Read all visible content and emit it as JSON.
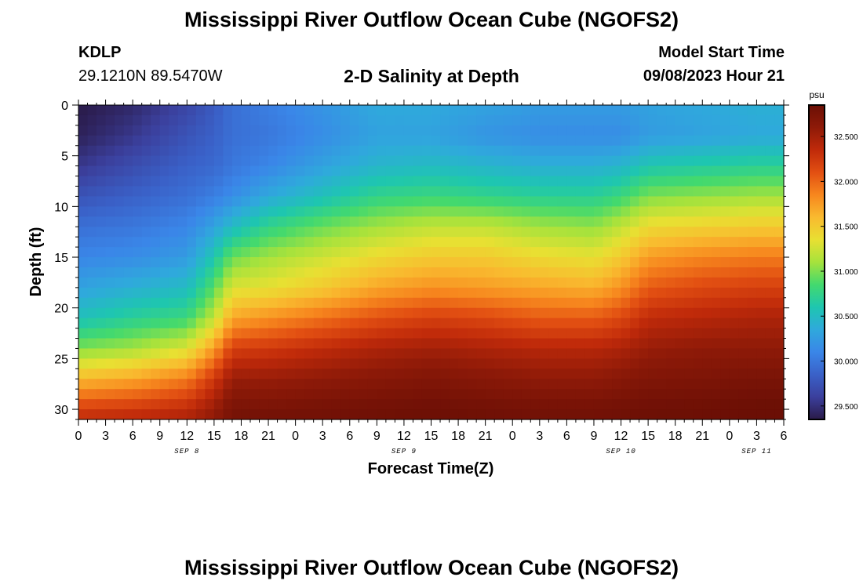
{
  "header": {
    "title": "Mississippi River Outflow Ocean Cube (NGOFS2)",
    "station_id": "KDLP",
    "station_coords": "29.1210N  89.5470W",
    "subtitle": "2-D Salinity at Depth",
    "start_label": "Model Start Time",
    "start_value": "09/08/2023 Hour 21"
  },
  "footer": {
    "title_repeat": "Mississippi River Outflow Ocean Cube (NGOFS2)"
  },
  "chart_data": {
    "type": "heatmap",
    "title": "2-D Salinity at Depth",
    "xlabel": "Forecast Time(Z)",
    "ylabel": "Depth (ft)",
    "x_unit": "hours since Sep 8 00Z",
    "xlim": [
      0,
      78
    ],
    "ylim": [
      31,
      0
    ],
    "x_tick_values": [
      0,
      3,
      6,
      9,
      12,
      15,
      18,
      21,
      24,
      27,
      30,
      33,
      36,
      39,
      42,
      45,
      48,
      51,
      54,
      57,
      60,
      63,
      66,
      69,
      72,
      75,
      78
    ],
    "x_tick_labels": [
      "0",
      "3",
      "6",
      "9",
      "12",
      "15",
      "18",
      "21",
      "0",
      "3",
      "6",
      "9",
      "12",
      "15",
      "18",
      "21",
      "0",
      "3",
      "6",
      "9",
      "12",
      "15",
      "18",
      "21",
      "0",
      "3",
      "6"
    ],
    "date_labels": [
      {
        "x": 12,
        "label": "SEP 8"
      },
      {
        "x": 36,
        "label": "SEP 9"
      },
      {
        "x": 60,
        "label": "SEP 10"
      },
      {
        "x": 75,
        "label": "SEP 11"
      }
    ],
    "y_ticks": [
      0,
      5,
      10,
      15,
      20,
      25,
      30
    ],
    "colorbar": {
      "unit": "psu",
      "min": 29.35,
      "max": 32.85,
      "ticks": [
        {
          "value": 29.5,
          "label": "29.500"
        },
        {
          "value": 30.0,
          "label": "30.000"
        },
        {
          "value": 30.5,
          "label": "30.500"
        },
        {
          "value": 31.0,
          "label": "31.000"
        },
        {
          "value": 31.5,
          "label": "31.500"
        },
        {
          "value": 32.0,
          "label": "32.000"
        },
        {
          "value": 32.5,
          "label": "32.500"
        }
      ],
      "colors": [
        "#2a1a48",
        "#3b3f9c",
        "#3a61c8",
        "#3a86e8",
        "#2fa9dc",
        "#1ec6b0",
        "#43d96e",
        "#a6e23c",
        "#e8e032",
        "#f9ba2f",
        "#f7871e",
        "#e24f12",
        "#c02a0a",
        "#8e1a08",
        "#6b0f05"
      ]
    },
    "time_x": [
      0,
      6,
      12,
      15,
      17,
      21,
      27,
      33,
      39,
      45,
      51,
      57,
      60,
      63,
      69,
      75,
      78
    ],
    "depth_y": [
      0,
      3,
      6,
      9,
      12,
      15,
      18,
      21,
      24,
      27,
      30,
      31
    ],
    "salinity": [
      [
        29.35,
        29.45,
        29.65,
        29.8,
        29.95,
        30.05,
        30.2,
        30.35,
        30.35,
        30.3,
        30.25,
        30.25,
        30.25,
        30.3,
        30.35,
        30.4,
        30.4
      ],
      [
        29.4,
        29.55,
        29.75,
        29.85,
        29.95,
        30.0,
        30.15,
        30.3,
        30.3,
        30.2,
        30.15,
        30.15,
        30.15,
        30.25,
        30.3,
        30.35,
        30.35
      ],
      [
        29.55,
        29.7,
        29.85,
        29.9,
        30.0,
        30.1,
        30.3,
        30.45,
        30.5,
        30.45,
        30.4,
        30.4,
        30.45,
        30.6,
        30.65,
        30.7,
        30.7
      ],
      [
        29.75,
        29.85,
        29.95,
        30.05,
        30.15,
        30.35,
        30.55,
        30.75,
        30.8,
        30.75,
        30.7,
        30.7,
        30.8,
        31.0,
        31.05,
        31.1,
        31.1
      ],
      [
        29.95,
        30.0,
        30.1,
        30.3,
        30.5,
        30.75,
        30.95,
        31.1,
        31.2,
        31.2,
        31.1,
        31.05,
        31.2,
        31.4,
        31.45,
        31.5,
        31.5
      ],
      [
        30.1,
        30.15,
        30.25,
        30.6,
        30.95,
        31.1,
        31.25,
        31.4,
        31.5,
        31.5,
        31.4,
        31.35,
        31.5,
        31.75,
        31.85,
        31.9,
        31.9
      ],
      [
        30.3,
        30.4,
        30.5,
        30.9,
        31.3,
        31.35,
        31.5,
        31.7,
        31.8,
        31.75,
        31.7,
        31.65,
        31.8,
        32.05,
        32.15,
        32.2,
        32.2
      ],
      [
        30.55,
        30.7,
        30.8,
        31.2,
        31.7,
        31.8,
        31.95,
        32.1,
        32.2,
        32.15,
        32.05,
        32.05,
        32.15,
        32.35,
        32.4,
        32.45,
        32.45
      ],
      [
        31.0,
        31.1,
        31.3,
        31.75,
        32.2,
        32.25,
        32.35,
        32.45,
        32.5,
        32.45,
        32.4,
        32.4,
        32.45,
        32.55,
        32.6,
        32.6,
        32.6
      ],
      [
        31.6,
        31.7,
        31.9,
        32.25,
        32.55,
        32.55,
        32.6,
        32.65,
        32.7,
        32.65,
        32.6,
        32.6,
        32.65,
        32.7,
        32.72,
        32.75,
        32.75
      ],
      [
        32.2,
        32.25,
        32.35,
        32.55,
        32.75,
        32.75,
        32.78,
        32.8,
        32.82,
        32.8,
        32.78,
        32.78,
        32.8,
        32.82,
        32.83,
        32.85,
        32.85
      ],
      [
        32.35,
        32.4,
        32.45,
        32.6,
        32.78,
        32.8,
        32.8,
        32.82,
        32.84,
        32.82,
        32.8,
        32.8,
        32.82,
        32.84,
        32.85,
        32.85,
        32.85
      ]
    ]
  }
}
